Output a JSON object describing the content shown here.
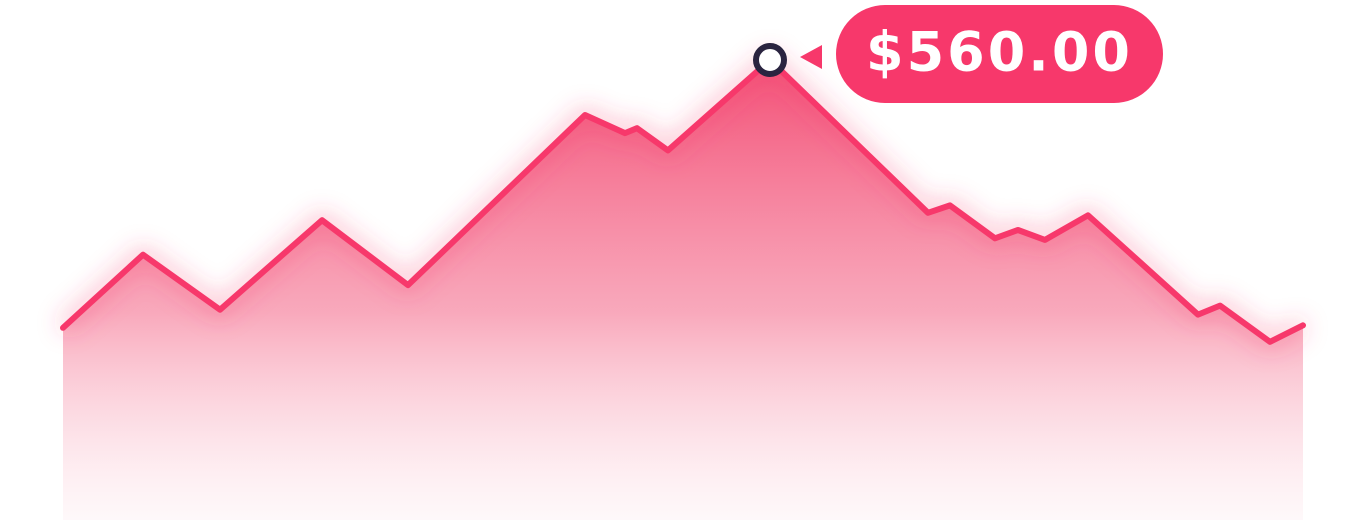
{
  "chart_data": {
    "type": "area",
    "x": [
      0,
      80,
      157,
      259,
      345,
      522,
      562,
      574,
      605,
      707,
      865,
      887,
      932,
      955,
      982,
      1025,
      1135,
      1157,
      1207,
      1240
    ],
    "values": [
      234,
      323,
      256,
      365,
      286,
      493,
      471,
      477,
      450,
      560,
      374,
      383,
      343,
      353,
      341,
      371,
      250,
      261,
      217,
      237
    ],
    "value_labels": [
      null,
      null,
      null,
      null,
      null,
      null,
      null,
      null,
      null,
      "$560.00",
      null,
      null,
      null,
      null,
      null,
      null,
      null,
      null,
      null,
      null
    ],
    "xlim": [
      0,
      1240
    ],
    "ylim": [
      0,
      600
    ],
    "color": "#f7386b"
  }
}
